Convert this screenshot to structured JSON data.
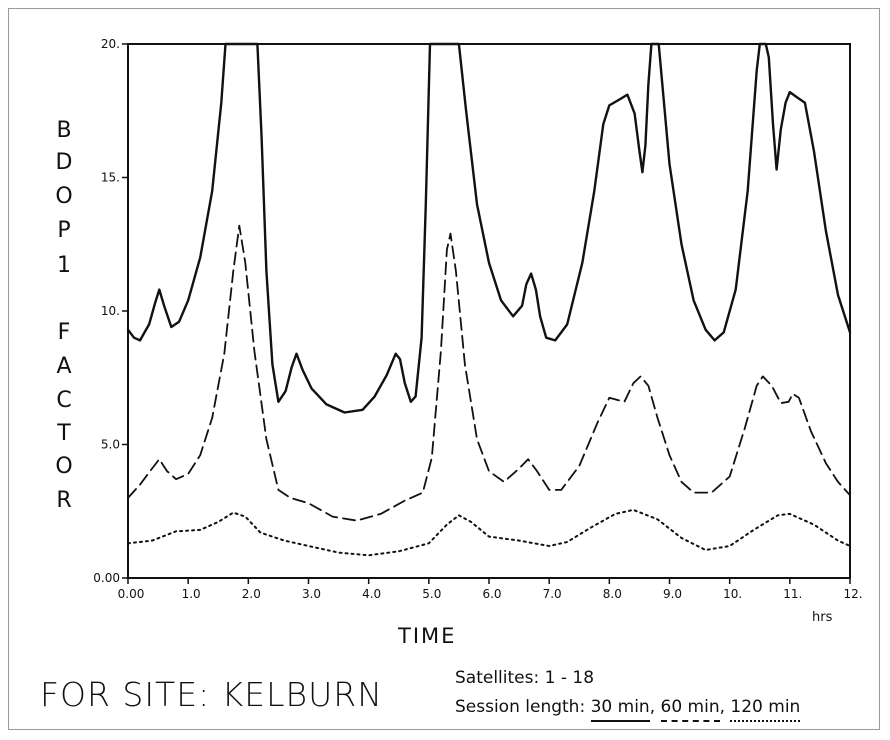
{
  "chart_data": {
    "type": "line",
    "ylabel_letters": [
      "B",
      "D",
      "O",
      "P",
      "1",
      "F",
      "A",
      "C",
      "T",
      "O",
      "R"
    ],
    "xlabel": "TIME",
    "x_unit": "hrs",
    "xlim": [
      0,
      12
    ],
    "ylim": [
      0,
      20
    ],
    "x_ticks": [
      0,
      1,
      2,
      3,
      4,
      5,
      6,
      7,
      8,
      9,
      10,
      11,
      12
    ],
    "x_tick_labels": [
      "0.00",
      "1.0",
      "2.0",
      "3.0",
      "4.0",
      "5.0",
      "6.0",
      "7.0",
      "8.0",
      "9.0",
      "10.",
      "11.",
      "12."
    ],
    "y_ticks": [
      0,
      5,
      10,
      15,
      20
    ],
    "y_tick_labels": [
      "0.00",
      "5.0",
      "10.",
      "15.",
      "20."
    ],
    "series": [
      {
        "style": "solid",
        "points": [
          [
            0,
            9.3
          ],
          [
            0.1,
            9.0
          ],
          [
            0.2,
            8.9
          ],
          [
            0.35,
            9.5
          ],
          [
            0.45,
            10.3
          ],
          [
            0.52,
            10.8
          ],
          [
            0.6,
            10.2
          ],
          [
            0.72,
            9.4
          ],
          [
            0.85,
            9.6
          ],
          [
            1.0,
            10.4
          ],
          [
            1.2,
            12.0
          ],
          [
            1.4,
            14.5
          ],
          [
            1.55,
            17.8
          ],
          [
            1.62,
            20
          ],
          [
            2.15,
            20
          ],
          [
            2.22,
            16.5
          ],
          [
            2.3,
            11.5
          ],
          [
            2.4,
            8.0
          ],
          [
            2.5,
            6.6
          ],
          [
            2.62,
            7.0
          ],
          [
            2.72,
            7.9
          ],
          [
            2.8,
            8.4
          ],
          [
            2.9,
            7.8
          ],
          [
            3.05,
            7.1
          ],
          [
            3.3,
            6.5
          ],
          [
            3.6,
            6.2
          ],
          [
            3.9,
            6.3
          ],
          [
            4.1,
            6.8
          ],
          [
            4.3,
            7.6
          ],
          [
            4.45,
            8.4
          ],
          [
            4.52,
            8.2
          ],
          [
            4.6,
            7.3
          ],
          [
            4.7,
            6.6
          ],
          [
            4.78,
            6.8
          ],
          [
            4.88,
            9.0
          ],
          [
            4.95,
            14.0
          ],
          [
            5.02,
            20
          ],
          [
            5.5,
            20
          ],
          [
            5.62,
            17.5
          ],
          [
            5.8,
            14.0
          ],
          [
            6.0,
            11.8
          ],
          [
            6.2,
            10.4
          ],
          [
            6.4,
            9.8
          ],
          [
            6.55,
            10.2
          ],
          [
            6.62,
            11.0
          ],
          [
            6.7,
            11.4
          ],
          [
            6.78,
            10.8
          ],
          [
            6.85,
            9.8
          ],
          [
            6.95,
            9.0
          ],
          [
            7.1,
            8.9
          ],
          [
            7.3,
            9.5
          ],
          [
            7.55,
            11.8
          ],
          [
            7.75,
            14.5
          ],
          [
            7.9,
            17.0
          ],
          [
            8.0,
            17.7
          ],
          [
            8.15,
            17.9
          ],
          [
            8.3,
            18.1
          ],
          [
            8.42,
            17.4
          ],
          [
            8.5,
            16.0
          ],
          [
            8.55,
            15.2
          ],
          [
            8.6,
            16.2
          ],
          [
            8.65,
            18.5
          ],
          [
            8.7,
            20
          ],
          [
            8.82,
            20
          ],
          [
            8.9,
            18.0
          ],
          [
            9.0,
            15.5
          ],
          [
            9.2,
            12.5
          ],
          [
            9.4,
            10.4
          ],
          [
            9.6,
            9.3
          ],
          [
            9.75,
            8.9
          ],
          [
            9.9,
            9.2
          ],
          [
            10.1,
            10.8
          ],
          [
            10.3,
            14.5
          ],
          [
            10.45,
            19.0
          ],
          [
            10.5,
            20
          ],
          [
            10.6,
            20
          ],
          [
            10.65,
            19.5
          ],
          [
            10.72,
            17.0
          ],
          [
            10.78,
            15.3
          ],
          [
            10.85,
            16.8
          ],
          [
            10.93,
            17.8
          ],
          [
            11.0,
            18.2
          ],
          [
            11.12,
            18.0
          ],
          [
            11.25,
            17.8
          ],
          [
            11.4,
            16.0
          ],
          [
            11.6,
            13.0
          ],
          [
            11.8,
            10.6
          ],
          [
            12.0,
            9.2
          ]
        ]
      },
      {
        "style": "dashed",
        "points": [
          [
            0,
            3.0
          ],
          [
            0.2,
            3.5
          ],
          [
            0.4,
            4.1
          ],
          [
            0.52,
            4.45
          ],
          [
            0.65,
            4.0
          ],
          [
            0.8,
            3.7
          ],
          [
            1.0,
            3.9
          ],
          [
            1.2,
            4.6
          ],
          [
            1.4,
            6.0
          ],
          [
            1.6,
            8.4
          ],
          [
            1.75,
            11.5
          ],
          [
            1.85,
            13.2
          ],
          [
            1.95,
            11.8
          ],
          [
            2.1,
            8.5
          ],
          [
            2.3,
            5.2
          ],
          [
            2.5,
            3.3
          ],
          [
            2.7,
            3.0
          ],
          [
            3.0,
            2.8
          ],
          [
            3.4,
            2.3
          ],
          [
            3.8,
            2.15
          ],
          [
            4.2,
            2.4
          ],
          [
            4.6,
            2.9
          ],
          [
            4.9,
            3.2
          ],
          [
            5.05,
            4.5
          ],
          [
            5.2,
            8.5
          ],
          [
            5.3,
            12.3
          ],
          [
            5.36,
            12.9
          ],
          [
            5.45,
            11.5
          ],
          [
            5.6,
            8.0
          ],
          [
            5.8,
            5.2
          ],
          [
            6.0,
            4.0
          ],
          [
            6.25,
            3.6
          ],
          [
            6.5,
            4.1
          ],
          [
            6.65,
            4.45
          ],
          [
            6.8,
            4.0
          ],
          [
            7.0,
            3.3
          ],
          [
            7.2,
            3.3
          ],
          [
            7.5,
            4.2
          ],
          [
            7.8,
            5.8
          ],
          [
            8.0,
            6.75
          ],
          [
            8.25,
            6.6
          ],
          [
            8.4,
            7.3
          ],
          [
            8.52,
            7.55
          ],
          [
            8.65,
            7.2
          ],
          [
            8.8,
            6.0
          ],
          [
            9.0,
            4.6
          ],
          [
            9.2,
            3.6
          ],
          [
            9.4,
            3.2
          ],
          [
            9.7,
            3.2
          ],
          [
            10.0,
            3.8
          ],
          [
            10.25,
            5.6
          ],
          [
            10.45,
            7.2
          ],
          [
            10.55,
            7.55
          ],
          [
            10.7,
            7.2
          ],
          [
            10.85,
            6.55
          ],
          [
            10.98,
            6.6
          ],
          [
            11.05,
            6.9
          ],
          [
            11.15,
            6.75
          ],
          [
            11.35,
            5.5
          ],
          [
            11.6,
            4.3
          ],
          [
            11.8,
            3.6
          ],
          [
            12.0,
            3.1
          ]
        ]
      },
      {
        "style": "dotted",
        "points": [
          [
            0,
            1.3
          ],
          [
            0.4,
            1.4
          ],
          [
            0.8,
            1.75
          ],
          [
            1.2,
            1.8
          ],
          [
            1.5,
            2.1
          ],
          [
            1.75,
            2.45
          ],
          [
            1.95,
            2.3
          ],
          [
            2.2,
            1.7
          ],
          [
            2.6,
            1.4
          ],
          [
            3.0,
            1.2
          ],
          [
            3.5,
            0.95
          ],
          [
            4.0,
            0.85
          ],
          [
            4.5,
            1.0
          ],
          [
            5.0,
            1.3
          ],
          [
            5.3,
            2.0
          ],
          [
            5.5,
            2.35
          ],
          [
            5.7,
            2.1
          ],
          [
            6.0,
            1.55
          ],
          [
            6.5,
            1.4
          ],
          [
            7.0,
            1.2
          ],
          [
            7.3,
            1.35
          ],
          [
            7.7,
            1.9
          ],
          [
            8.1,
            2.4
          ],
          [
            8.4,
            2.55
          ],
          [
            8.8,
            2.2
          ],
          [
            9.2,
            1.5
          ],
          [
            9.6,
            1.05
          ],
          [
            10.0,
            1.2
          ],
          [
            10.4,
            1.8
          ],
          [
            10.8,
            2.35
          ],
          [
            11.0,
            2.4
          ],
          [
            11.4,
            2.0
          ],
          [
            11.8,
            1.4
          ],
          [
            12.0,
            1.2
          ]
        ]
      }
    ]
  },
  "footer": {
    "site": "FOR SITE: KELBURN",
    "satellites": "Satellites:  1 - 18",
    "session_prefix": "Session length:",
    "session_values": [
      "30 min",
      "60 min",
      "120 min"
    ]
  }
}
